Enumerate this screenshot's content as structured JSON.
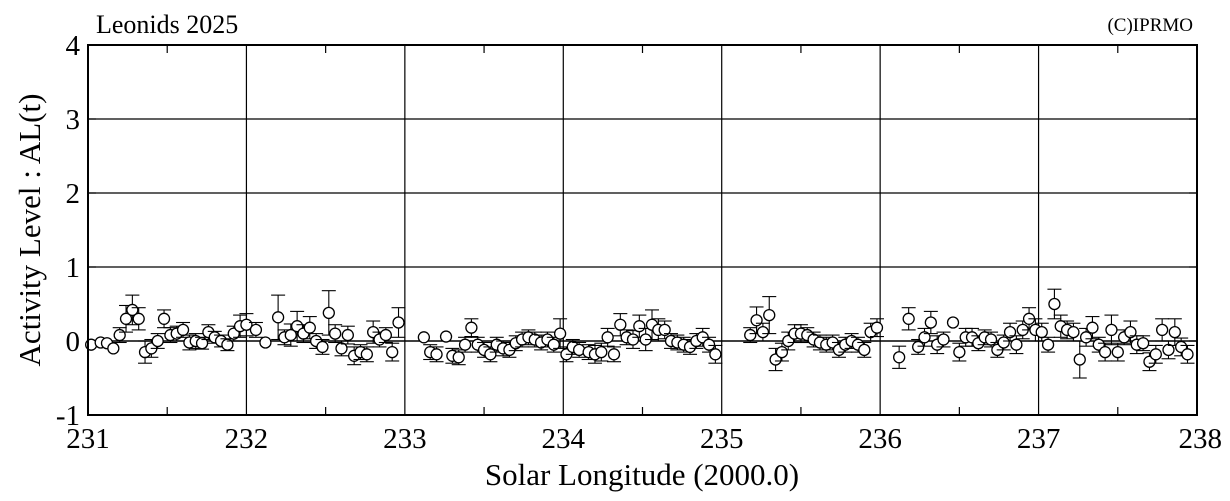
{
  "chart_data": {
    "type": "scatter",
    "title": "Leonids 2025",
    "copyright": "(C)IPRMO",
    "xlabel": "Solar Longitude (2000.0)",
    "ylabel": "Activity Level : AL(t)",
    "xlim": [
      231,
      238
    ],
    "ylim": [
      -1,
      4
    ],
    "xticks": [
      "231",
      "232",
      "233",
      "234",
      "235",
      "236",
      "237",
      "238"
    ],
    "yticks": [
      "-1",
      "0",
      "1",
      "2",
      "3",
      "4"
    ],
    "grid": true,
    "zero_line": true,
    "points": [
      [
        231.02,
        -0.05,
        0
      ],
      [
        231.08,
        -0.02,
        0
      ],
      [
        231.12,
        -0.03,
        0
      ],
      [
        231.16,
        -0.1,
        0
      ],
      [
        231.2,
        0.08,
        0.1
      ],
      [
        231.24,
        0.3,
        0.18
      ],
      [
        231.28,
        0.42,
        0.2
      ],
      [
        231.32,
        0.3,
        0.15
      ],
      [
        231.36,
        -0.15,
        0.15
      ],
      [
        231.4,
        -0.1,
        0.12
      ],
      [
        231.44,
        0.0,
        0.1
      ],
      [
        231.48,
        0.3,
        0.12
      ],
      [
        231.52,
        0.08,
        0.1
      ],
      [
        231.56,
        0.1,
        0.1
      ],
      [
        231.6,
        0.15,
        0.1
      ],
      [
        231.64,
        -0.02,
        0.1
      ],
      [
        231.68,
        0.0,
        0.1
      ],
      [
        231.72,
        -0.03,
        0.08
      ],
      [
        231.76,
        0.12,
        0.1
      ],
      [
        231.8,
        0.05,
        0.08
      ],
      [
        231.84,
        0.0,
        0.08
      ],
      [
        231.88,
        -0.05,
        0.08
      ],
      [
        231.92,
        0.1,
        0.1
      ],
      [
        231.96,
        0.2,
        0.15
      ],
      [
        232.0,
        0.22,
        0.15
      ],
      [
        232.06,
        0.15,
        0.1
      ],
      [
        232.12,
        -0.02,
        0.0
      ],
      [
        232.2,
        0.32,
        0.3
      ],
      [
        232.24,
        0.05,
        0.1
      ],
      [
        232.28,
        0.08,
        0.15
      ],
      [
        232.32,
        0.2,
        0.2
      ],
      [
        232.36,
        0.1,
        0.12
      ],
      [
        232.4,
        0.18,
        0.15
      ],
      [
        232.44,
        0.0,
        0.1
      ],
      [
        232.48,
        -0.08,
        0.1
      ],
      [
        232.52,
        0.38,
        0.3
      ],
      [
        232.56,
        0.1,
        0.12
      ],
      [
        232.6,
        -0.1,
        0.1
      ],
      [
        232.64,
        0.08,
        0.12
      ],
      [
        232.68,
        -0.2,
        0.12
      ],
      [
        232.72,
        -0.15,
        0.1
      ],
      [
        232.76,
        -0.18,
        0.1
      ],
      [
        232.8,
        0.12,
        0.15
      ],
      [
        232.84,
        0.02,
        0.1
      ],
      [
        232.88,
        0.08,
        0.1
      ],
      [
        232.92,
        -0.15,
        0.12
      ],
      [
        232.96,
        0.25,
        0.2
      ],
      [
        233.12,
        0.05,
        0.0
      ],
      [
        233.16,
        -0.15,
        0.1
      ],
      [
        233.2,
        -0.18,
        0.1
      ],
      [
        233.26,
        0.06,
        0.0
      ],
      [
        233.3,
        -0.2,
        0.1
      ],
      [
        233.34,
        -0.22,
        0.1
      ],
      [
        233.38,
        -0.05,
        0.1
      ],
      [
        233.42,
        0.18,
        0.12
      ],
      [
        233.46,
        -0.05,
        0.1
      ],
      [
        233.5,
        -0.12,
        0.1
      ],
      [
        233.54,
        -0.18,
        0.1
      ],
      [
        233.58,
        -0.05,
        0.1
      ],
      [
        233.62,
        -0.1,
        0.1
      ],
      [
        233.66,
        -0.12,
        0.1
      ],
      [
        233.7,
        -0.03,
        0.1
      ],
      [
        233.74,
        0.02,
        0.1
      ],
      [
        233.78,
        0.05,
        0.1
      ],
      [
        233.82,
        0.02,
        0.1
      ],
      [
        233.86,
        -0.02,
        0.1
      ],
      [
        233.9,
        0.02,
        0.1
      ],
      [
        233.94,
        -0.05,
        0.1
      ],
      [
        233.98,
        0.1,
        0.2
      ],
      [
        234.02,
        -0.18,
        0.1
      ],
      [
        234.06,
        -0.08,
        0.1
      ],
      [
        234.1,
        -0.12,
        0.1
      ],
      [
        234.16,
        -0.15,
        0.1
      ],
      [
        234.2,
        -0.18,
        0.12
      ],
      [
        234.24,
        -0.15,
        0.12
      ],
      [
        234.28,
        0.05,
        0.12
      ],
      [
        234.32,
        -0.18,
        0.1
      ],
      [
        234.36,
        0.22,
        0.15
      ],
      [
        234.4,
        0.05,
        0.1
      ],
      [
        234.44,
        0.02,
        0.12
      ],
      [
        234.48,
        0.2,
        0.15
      ],
      [
        234.52,
        0.02,
        0.15
      ],
      [
        234.56,
        0.22,
        0.2
      ],
      [
        234.6,
        0.15,
        0.15
      ],
      [
        234.64,
        0.15,
        0.12
      ],
      [
        234.68,
        0.0,
        0.1
      ],
      [
        234.72,
        -0.02,
        0.1
      ],
      [
        234.76,
        -0.05,
        0.1
      ],
      [
        234.8,
        -0.08,
        0.1
      ],
      [
        234.84,
        0.0,
        0.1
      ],
      [
        234.88,
        0.05,
        0.12
      ],
      [
        234.92,
        -0.05,
        0.1
      ],
      [
        234.96,
        -0.18,
        0.12
      ],
      [
        235.18,
        0.08,
        0.1
      ],
      [
        235.22,
        0.28,
        0.18
      ],
      [
        235.26,
        0.12,
        0.12
      ],
      [
        235.3,
        0.35,
        0.25
      ],
      [
        235.34,
        -0.25,
        0.15
      ],
      [
        235.38,
        -0.15,
        0.12
      ],
      [
        235.42,
        0.0,
        0.12
      ],
      [
        235.46,
        0.1,
        0.12
      ],
      [
        235.5,
        0.1,
        0.12
      ],
      [
        235.54,
        0.08,
        0.1
      ],
      [
        235.58,
        0.02,
        0.1
      ],
      [
        235.62,
        -0.02,
        0.1
      ],
      [
        235.66,
        -0.05,
        0.1
      ],
      [
        235.7,
        -0.02,
        0.1
      ],
      [
        235.74,
        -0.12,
        0.1
      ],
      [
        235.78,
        -0.05,
        0.1
      ],
      [
        235.82,
        0.0,
        0.1
      ],
      [
        235.86,
        -0.05,
        0.1
      ],
      [
        235.9,
        -0.12,
        0.1
      ],
      [
        235.94,
        0.12,
        0.12
      ],
      [
        235.98,
        0.18,
        0.12
      ],
      [
        236.12,
        -0.22,
        0.15
      ],
      [
        236.18,
        0.3,
        0.15
      ],
      [
        236.24,
        -0.08,
        0.1
      ],
      [
        236.28,
        0.05,
        0.12
      ],
      [
        236.32,
        0.25,
        0.15
      ],
      [
        236.36,
        -0.05,
        0.12
      ],
      [
        236.4,
        0.02,
        0.1
      ],
      [
        236.46,
        0.25,
        0.0
      ],
      [
        236.5,
        -0.15,
        0.12
      ],
      [
        236.54,
        0.05,
        0.12
      ],
      [
        236.58,
        0.05,
        0.12
      ],
      [
        236.62,
        -0.03,
        0.1
      ],
      [
        236.66,
        0.05,
        0.1
      ],
      [
        236.7,
        0.02,
        0.1
      ],
      [
        236.74,
        -0.12,
        0.1
      ],
      [
        236.78,
        -0.02,
        0.1
      ],
      [
        236.82,
        0.12,
        0.12
      ],
      [
        236.86,
        -0.05,
        0.12
      ],
      [
        236.9,
        0.15,
        0.12
      ],
      [
        236.94,
        0.3,
        0.15
      ],
      [
        236.98,
        0.15,
        0.15
      ],
      [
        237.02,
        0.12,
        0.12
      ],
      [
        237.06,
        -0.05,
        0.1
      ],
      [
        237.1,
        0.5,
        0.2
      ],
      [
        237.14,
        0.2,
        0.15
      ],
      [
        237.18,
        0.15,
        0.12
      ],
      [
        237.22,
        0.12,
        0.12
      ],
      [
        237.26,
        -0.25,
        0.25
      ],
      [
        237.3,
        0.05,
        0.12
      ],
      [
        237.34,
        0.18,
        0.15
      ],
      [
        237.38,
        -0.05,
        0.1
      ],
      [
        237.42,
        -0.15,
        0.12
      ],
      [
        237.46,
        0.15,
        0.2
      ],
      [
        237.5,
        -0.15,
        0.12
      ],
      [
        237.54,
        0.05,
        0.1
      ],
      [
        237.58,
        0.12,
        0.15
      ],
      [
        237.62,
        -0.05,
        0.12
      ],
      [
        237.66,
        -0.03,
        0.1
      ],
      [
        237.7,
        -0.28,
        0.12
      ],
      [
        237.74,
        -0.18,
        0.12
      ],
      [
        237.78,
        0.15,
        0.15
      ],
      [
        237.82,
        -0.12,
        0.12
      ],
      [
        237.86,
        0.12,
        0.18
      ],
      [
        237.9,
        -0.08,
        0.12
      ],
      [
        237.94,
        -0.18,
        0.12
      ]
    ]
  }
}
